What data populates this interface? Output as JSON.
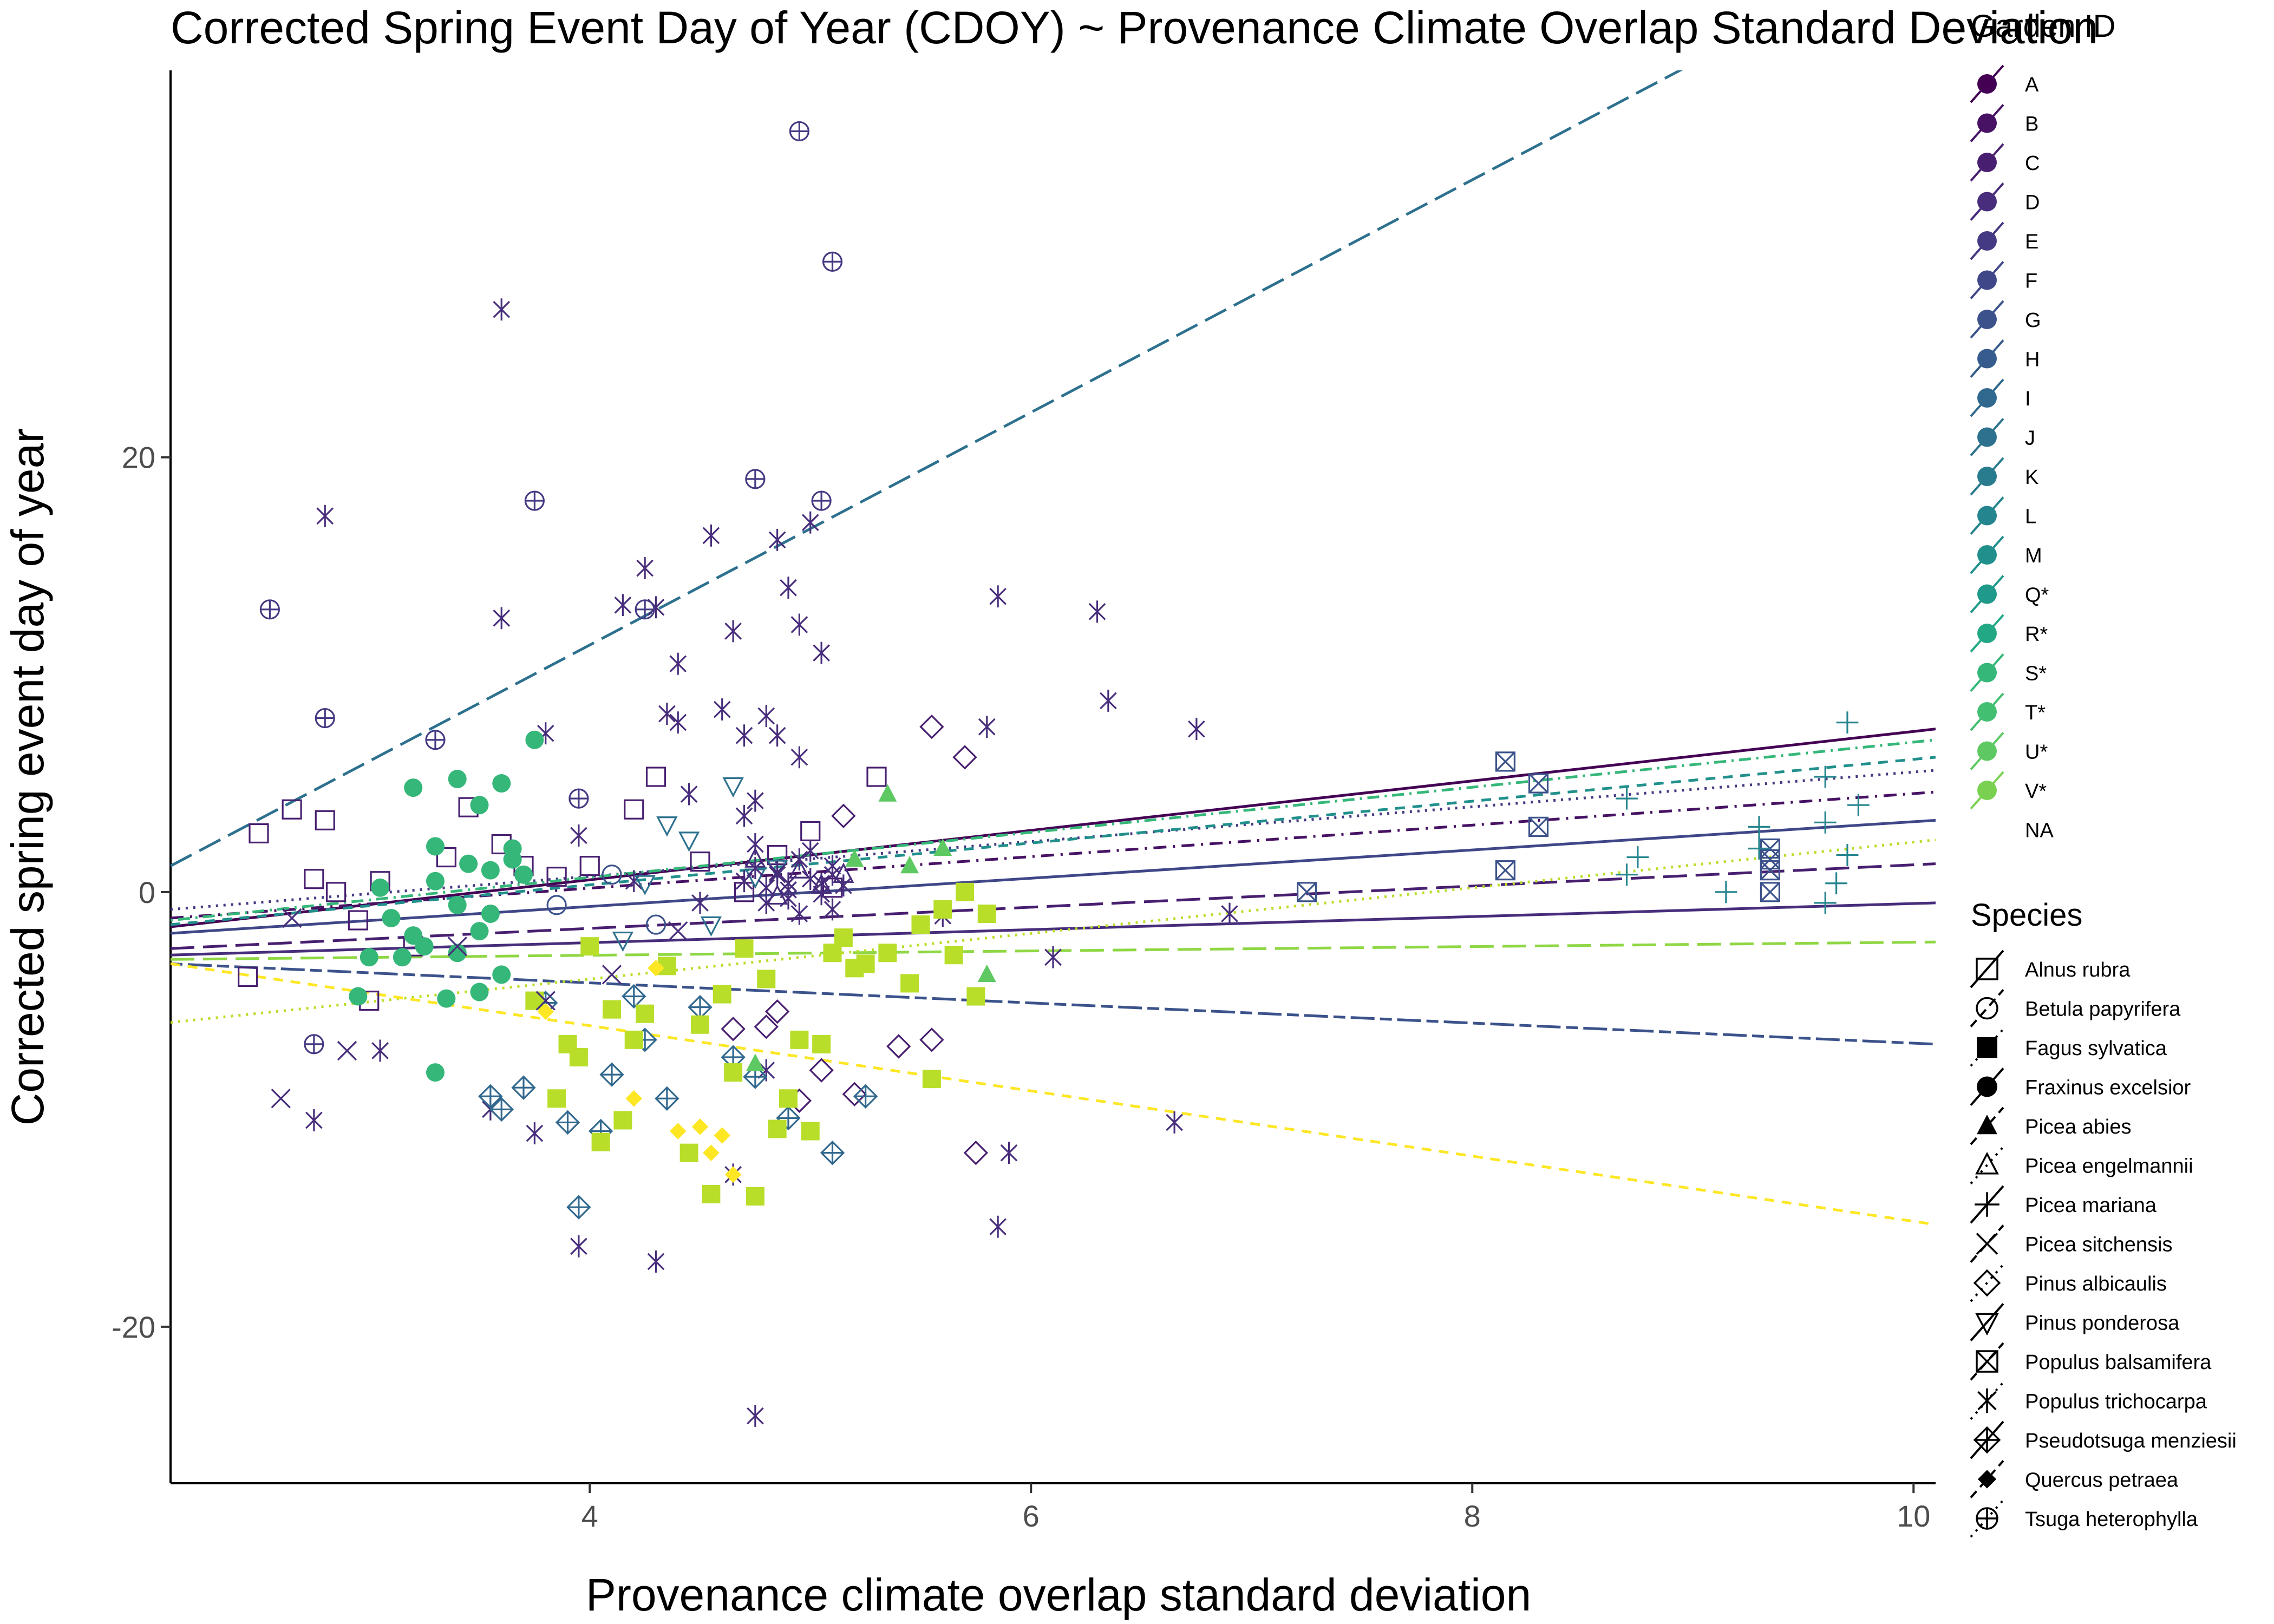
{
  "chart_data": {
    "type": "scatter",
    "title": "Corrected Spring Event Day of Year (CDOY) ~ Provenance Climate Overlap Standard Deviation",
    "xlabel": "Provenance climate overlap standard deviation",
    "ylabel": "Corrected spring event day of year",
    "xlim": [
      2.1,
      10.1
    ],
    "ylim": [
      -27.2,
      37.8
    ],
    "x_ticks": [
      4,
      6,
      8,
      10
    ],
    "x_tick_labels": [
      "4",
      "6",
      "8",
      "10"
    ],
    "y_ticks": [
      -20,
      0,
      20
    ],
    "y_tick_labels": [
      "-20",
      "0",
      "20"
    ],
    "grid": false,
    "legend_position": "right",
    "legends": [
      {
        "title": "Garden ID",
        "entries": [
          {
            "label": "A",
            "color": "#440154"
          },
          {
            "label": "B",
            "color": "#471164"
          },
          {
            "label": "C",
            "color": "#481F70"
          },
          {
            "label": "D",
            "color": "#472D7B"
          },
          {
            "label": "E",
            "color": "#443A83"
          },
          {
            "label": "F",
            "color": "#3F4788"
          },
          {
            "label": "G",
            "color": "#3B528B"
          },
          {
            "label": "H",
            "color": "#365C8D"
          },
          {
            "label": "I",
            "color": "#31688E"
          },
          {
            "label": "J",
            "color": "#2D718E"
          },
          {
            "label": "K",
            "color": "#297B8E"
          },
          {
            "label": "L",
            "color": "#25858E"
          },
          {
            "label": "M",
            "color": "#21908C"
          },
          {
            "label": "Q*",
            "color": "#1F998A"
          },
          {
            "label": "R*",
            "color": "#22A884"
          },
          {
            "label": "S*",
            "color": "#35B779"
          },
          {
            "label": "T*",
            "color": "#43BF71"
          },
          {
            "label": "U*",
            "color": "#5EC962"
          },
          {
            "label": "V*",
            "color": "#7AD151"
          },
          {
            "label": "NA",
            "color": ""
          }
        ]
      },
      {
        "title": "Species",
        "entries": [
          {
            "label": "Alnus rubra",
            "shape": "square-open"
          },
          {
            "label": "Betula papyrifera",
            "shape": "circle-open"
          },
          {
            "label": "Fagus sylvatica",
            "shape": "square-filled"
          },
          {
            "label": "Fraxinus excelsior",
            "shape": "circle-filled"
          },
          {
            "label": "Picea abies",
            "shape": "triangle-filled"
          },
          {
            "label": "Picea engelmannii",
            "shape": "triangle-open"
          },
          {
            "label": "Picea mariana",
            "shape": "plus"
          },
          {
            "label": "Picea sitchensis",
            "shape": "cross"
          },
          {
            "label": "Pinus albicaulis",
            "shape": "diamond-open"
          },
          {
            "label": "Pinus ponderosa",
            "shape": "triangle-down-open"
          },
          {
            "label": "Populus balsamifera",
            "shape": "square-cross"
          },
          {
            "label": "Populus trichocarpa",
            "shape": "asterisk"
          },
          {
            "label": "Pseudotsuga menziesii",
            "shape": "diamond-plus"
          },
          {
            "label": "Quercus petraea",
            "shape": "diamond-filled"
          },
          {
            "label": "Tsuga heterophylla",
            "shape": "circle-plus"
          }
        ]
      }
    ],
    "trend_lines": [
      {
        "garden": "A",
        "color": "#440154",
        "dash": "solid",
        "x": [
          2.1,
          10.1
        ],
        "y": [
          -1.6,
          7.5
        ]
      },
      {
        "garden": "B",
        "color": "#471164",
        "dash": "dashdot",
        "x": [
          2.1,
          10.1
        ],
        "y": [
          -1.2,
          4.6
        ]
      },
      {
        "garden": "C",
        "color": "#481F70",
        "dash": "longdash",
        "x": [
          2.1,
          10.1
        ],
        "y": [
          -2.6,
          1.3
        ]
      },
      {
        "garden": "D",
        "color": "#472D7B",
        "dash": "solid",
        "x": [
          2.1,
          10.1
        ],
        "y": [
          -2.9,
          -0.5
        ]
      },
      {
        "garden": "E",
        "color": "#443A83",
        "dash": "dotted",
        "x": [
          2.1,
          10.1
        ],
        "y": [
          -0.8,
          5.6
        ]
      },
      {
        "garden": "F",
        "color": "#3F4788",
        "dash": "solid",
        "x": [
          2.1,
          10.1
        ],
        "y": [
          -1.9,
          3.3
        ]
      },
      {
        "garden": "G",
        "color": "#3B528B",
        "dash": "twodash",
        "x": [
          2.1,
          10.1
        ],
        "y": [
          -3.3,
          -7.0
        ]
      },
      {
        "garden": "H",
        "color": "#2D718E",
        "dash": "longdash",
        "x": [
          2.1,
          10.1
        ],
        "y": [
          1.2,
          44.0
        ]
      },
      {
        "garden": "I",
        "color": "#21908C",
        "dash": "dashed",
        "x": [
          2.1,
          10.1
        ],
        "y": [
          -1.5,
          6.2
        ]
      },
      {
        "garden": "J",
        "color": "#35B779",
        "dash": "dotdash",
        "x": [
          2.1,
          10.1
        ],
        "y": [
          -1.3,
          7.0
        ]
      },
      {
        "garden": "K",
        "color": "#8FD744",
        "dash": "longdash",
        "x": [
          2.1,
          10.1
        ],
        "y": [
          -3.1,
          -2.3
        ]
      },
      {
        "garden": "L",
        "color": "#B8DE29",
        "dash": "dotted",
        "x": [
          2.1,
          10.1
        ],
        "y": [
          -6.0,
          2.4
        ]
      },
      {
        "garden": "M",
        "color": "#FDE725",
        "dash": "dashed",
        "x": [
          2.1,
          10.1
        ],
        "y": [
          -3.3,
          -15.3
        ]
      }
    ],
    "series": [
      {
        "species": "Populus trichocarpa",
        "shape": "asterisk",
        "color": "#472D7B",
        "x": [
          2.8,
          3.6,
          3.6,
          3.8,
          3.95,
          4.15,
          4.25,
          4.3,
          4.35,
          4.4,
          4.45,
          4.55,
          4.65,
          4.7,
          4.75,
          4.8,
          4.85,
          4.9,
          4.95,
          5.0,
          5.05,
          4.85,
          4.95,
          4.4,
          4.6,
          4.7,
          5.85,
          6.3,
          6.35,
          6.75,
          5.8,
          5.9,
          5.85,
          4.3,
          3.95,
          4.75,
          4.65,
          2.75,
          3.05,
          3.55,
          3.75,
          4.8,
          6.65,
          6.9,
          6.1,
          5.6,
          4.9,
          5.1,
          4.2,
          4.5
        ],
        "y": [
          17.3,
          26.8,
          12.6,
          7.3,
          2.6,
          13.2,
          14.9,
          13.1,
          8.2,
          7.8,
          4.5,
          16.4,
          12.0,
          3.5,
          4.2,
          8.1,
          16.2,
          14.0,
          12.3,
          17.0,
          11.0,
          7.2,
          6.2,
          10.5,
          8.4,
          7.2,
          13.6,
          12.9,
          8.8,
          7.5,
          7.6,
          -12.0,
          -15.4,
          -17.0,
          -16.3,
          -24.1,
          -13.0,
          -10.5,
          -7.3,
          -10.0,
          -11.1,
          -8.2,
          -10.6,
          -1.0,
          -3.0,
          -1.1,
          0.4,
          0.8,
          0.5,
          -0.5
        ]
      },
      {
        "species": "Alnus rubra",
        "shape": "square-open",
        "color": "#481F70",
        "x": [
          2.5,
          2.65,
          2.75,
          2.85,
          2.95,
          3.05,
          3.2,
          3.35,
          3.45,
          3.6,
          3.7,
          3.85,
          4.0,
          4.2,
          4.3,
          4.5,
          4.7,
          4.85,
          5.0,
          5.3,
          5.1,
          2.8,
          3.0,
          2.45
        ],
        "y": [
          2.7,
          3.8,
          0.6,
          0.0,
          -1.3,
          0.5,
          -2.5,
          1.6,
          3.9,
          2.2,
          1.2,
          0.7,
          1.2,
          3.8,
          5.3,
          1.4,
          0.0,
          1.7,
          2.8,
          5.3,
          0.2,
          3.3,
          -5.0,
          -3.9
        ]
      },
      {
        "species": "Pinus albicaulis",
        "shape": "diamond-open",
        "color": "#481F70",
        "x": [
          4.85,
          4.95,
          5.05,
          5.2,
          5.4,
          5.55,
          5.7,
          5.75,
          5.55,
          4.65,
          4.8,
          5.15
        ],
        "y": [
          -5.5,
          -9.6,
          -8.2,
          -9.3,
          -7.1,
          7.6,
          6.2,
          -12.0,
          -6.8,
          -6.3,
          -6.2,
          3.5
        ]
      },
      {
        "species": "Tsuga heterophylla",
        "shape": "circle-plus",
        "color": "#443A83",
        "x": [
          2.55,
          2.8,
          3.3,
          3.75,
          3.95,
          4.25,
          4.75,
          4.95,
          5.1,
          5.05,
          2.75
        ],
        "y": [
          13.0,
          8.0,
          7.0,
          18.0,
          4.3,
          13.0,
          19.0,
          35.0,
          29.0,
          18.0,
          -7.0
        ]
      },
      {
        "species": "Pseudotsuga menziesii",
        "shape": "diamond-plus",
        "color": "#31688E",
        "x": [
          3.6,
          3.7,
          3.9,
          4.05,
          4.1,
          4.25,
          4.35,
          4.5,
          4.65,
          4.75,
          4.9,
          5.1,
          5.25,
          3.55,
          3.8,
          4.2,
          3.95
        ],
        "y": [
          -10.0,
          -9.0,
          -10.6,
          -11.0,
          -8.4,
          -6.8,
          -9.5,
          -5.3,
          -7.6,
          -8.5,
          -10.4,
          -12.0,
          -9.4,
          -9.4,
          -5.1,
          -4.8,
          -14.5
        ]
      },
      {
        "species": "Pinus ponderosa",
        "shape": "triangle-down-open",
        "color": "#2D718E",
        "x": [
          4.35,
          4.45,
          4.65,
          4.75,
          4.55,
          4.25,
          4.15,
          4.85
        ],
        "y": [
          3.1,
          2.4,
          4.9,
          0.7,
          -1.5,
          0.4,
          -2.2,
          1.1
        ]
      },
      {
        "species": "Populus balsamifera",
        "shape": "square-cross",
        "color": "#3B528B",
        "x": [
          7.25,
          8.15,
          8.3,
          8.15,
          8.3,
          9.35,
          9.35,
          9.35,
          9.35
        ],
        "y": [
          0.0,
          6.0,
          5.0,
          1.0,
          3.0,
          2.0,
          1.0,
          0.0,
          1.5
        ]
      },
      {
        "species": "Picea mariana",
        "shape": "plus",
        "color": "#25858E",
        "x": [
          8.7,
          8.75,
          8.7,
          9.15,
          9.3,
          9.6,
          9.6,
          9.65,
          9.7,
          9.75,
          9.7,
          9.6,
          9.3
        ],
        "y": [
          4.3,
          1.6,
          0.8,
          0.0,
          3.0,
          5.3,
          3.2,
          0.4,
          7.8,
          4.0,
          1.7,
          -0.5,
          2.0
        ]
      },
      {
        "species": "Fraxinus excelsior",
        "shape": "circle-filled",
        "color": "#35B779",
        "x": [
          3.05,
          3.1,
          3.15,
          3.2,
          3.25,
          3.3,
          3.35,
          3.4,
          3.45,
          3.5,
          3.55,
          3.6,
          3.65,
          3.7,
          3.75,
          3.3,
          3.4,
          3.5,
          3.6,
          3.2,
          3.3,
          3.4,
          3.65,
          2.95,
          3.0,
          3.5,
          3.55
        ],
        "y": [
          0.2,
          -1.2,
          -3.0,
          4.8,
          -2.5,
          2.1,
          -4.9,
          5.2,
          1.3,
          4.0,
          -1.0,
          5.0,
          1.5,
          0.8,
          7.0,
          -8.3,
          -2.8,
          -4.6,
          -3.8,
          -2.0,
          0.5,
          -0.6,
          2.0,
          -4.8,
          -3.0,
          -1.8,
          1.0
        ]
      },
      {
        "species": "Fagus sylvatica",
        "shape": "square-filled",
        "color": "#B8DE29",
        "x": [
          3.75,
          3.85,
          3.95,
          4.05,
          4.15,
          4.25,
          4.35,
          4.45,
          4.55,
          4.65,
          4.75,
          4.85,
          4.95,
          5.05,
          5.15,
          5.25,
          5.35,
          5.45,
          5.55,
          5.65,
          5.75,
          4.5,
          4.6,
          4.7,
          4.8,
          4.9,
          5.0,
          5.1,
          5.2,
          4.2,
          4.1,
          4.0,
          3.9,
          5.5,
          5.6,
          5.7,
          5.8
        ],
        "y": [
          -5.0,
          -9.5,
          -7.6,
          -11.5,
          -10.5,
          -5.6,
          -3.4,
          -12.0,
          -13.9,
          -8.3,
          -14.0,
          -10.9,
          -6.8,
          -7.0,
          -2.1,
          -3.3,
          -2.8,
          -4.2,
          -8.6,
          -2.9,
          -4.8,
          -6.1,
          -4.7,
          -2.6,
          -4.0,
          -9.5,
          -11.0,
          -2.8,
          -3.5,
          -6.8,
          -5.4,
          -2.5,
          -7.0,
          -1.5,
          -0.8,
          0.0,
          -1.0
        ]
      },
      {
        "species": "Picea abies",
        "shape": "triangle-filled",
        "color": "#5EC962",
        "x": [
          4.75,
          5.2,
          5.45,
          5.6,
          5.8,
          5.35
        ],
        "y": [
          -7.9,
          1.5,
          1.2,
          2.0,
          -3.8,
          4.5
        ]
      },
      {
        "species": "Quercus petraea",
        "shape": "diamond-filled",
        "color": "#FDE725",
        "x": [
          4.4,
          4.5,
          4.55,
          4.6,
          4.65,
          4.2,
          4.3,
          3.8
        ],
        "y": [
          -11.0,
          -10.8,
          -12.0,
          -11.2,
          -13.0,
          -9.5,
          -3.5,
          -5.5
        ]
      },
      {
        "species": "Picea sitchensis",
        "shape": "cross",
        "color": "#472D7B",
        "x": [
          2.6,
          2.9,
          3.4,
          3.8,
          4.1,
          4.4,
          2.65
        ],
        "y": [
          -9.5,
          -7.3,
          -2.5,
          -5.0,
          -3.8,
          -1.8,
          -1.2
        ]
      },
      {
        "species": "Picea engelmannii",
        "shape": "triangle-open",
        "color": "#472D7B",
        "x": [
          4.95,
          5.05,
          5.15,
          4.85,
          4.75
        ],
        "y": [
          1.0,
          0.3,
          0.8,
          -0.2,
          1.5
        ]
      },
      {
        "species": "Populus trichocarpa",
        "shape": "asterisk",
        "color": "#472D7B",
        "x": [
          4.7,
          4.75,
          4.8,
          4.85,
          4.9,
          4.95,
          5.0,
          5.05,
          5.1,
          5.15,
          4.8,
          4.9,
          5.0,
          5.1,
          4.75,
          4.85,
          4.95,
          5.05
        ],
        "y": [
          0.5,
          1.1,
          0.2,
          0.8,
          -0.3,
          1.5,
          0.6,
          -0.1,
          1.2,
          0.3,
          -0.5,
          0.1,
          1.9,
          -0.8,
          2.2,
          0.9,
          -1.0,
          0.4
        ]
      },
      {
        "species": "Betula papyrifera",
        "shape": "circle-open",
        "color": "#3B528B",
        "x": [
          3.85,
          4.1,
          4.3
        ],
        "y": [
          -0.6,
          0.8,
          -1.5
        ]
      }
    ]
  }
}
